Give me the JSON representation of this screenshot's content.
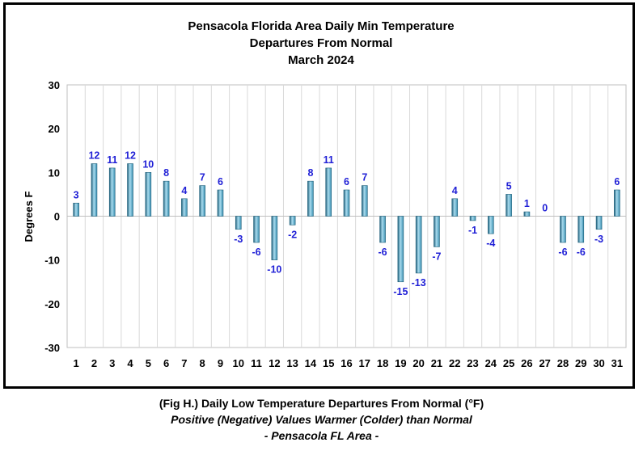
{
  "chart_data": {
    "type": "bar",
    "title": [
      "Pensacola Florida Area Daily Min Temperature",
      "Departures From Normal",
      "March 2024"
    ],
    "ylabel": "Degrees F",
    "xlabel": "",
    "ylim": [
      -30,
      30
    ],
    "yticks": [
      30,
      20,
      10,
      0,
      -10,
      -20,
      -30
    ],
    "grid": "vertical",
    "categories": [
      "1",
      "2",
      "3",
      "4",
      "5",
      "6",
      "7",
      "8",
      "9",
      "10",
      "11",
      "12",
      "13",
      "14",
      "15",
      "16",
      "17",
      "18",
      "19",
      "20",
      "21",
      "22",
      "23",
      "24",
      "25",
      "26",
      "27",
      "28",
      "29",
      "30",
      "31"
    ],
    "values": [
      3,
      12,
      11,
      12,
      10,
      8,
      4,
      7,
      6,
      -3,
      -6,
      -10,
      -2,
      8,
      11,
      6,
      7,
      -6,
      -15,
      -13,
      -7,
      4,
      -1,
      -4,
      5,
      1,
      0,
      -6,
      -6,
      -3,
      6
    ],
    "colors": {
      "bar": "#3a8fb0",
      "bar_light": "#a9dcef",
      "bar_dark": "#1f5f7a",
      "label": "#1f1fd6",
      "grid": "#d9d9d9"
    }
  },
  "caption": {
    "line1": "(Fig H.) Daily Low Temperature Departures From Normal (°F)",
    "line2": "Positive (Negative) Values Warmer (Colder) than Normal",
    "line3": "- Pensacola FL Area -"
  }
}
